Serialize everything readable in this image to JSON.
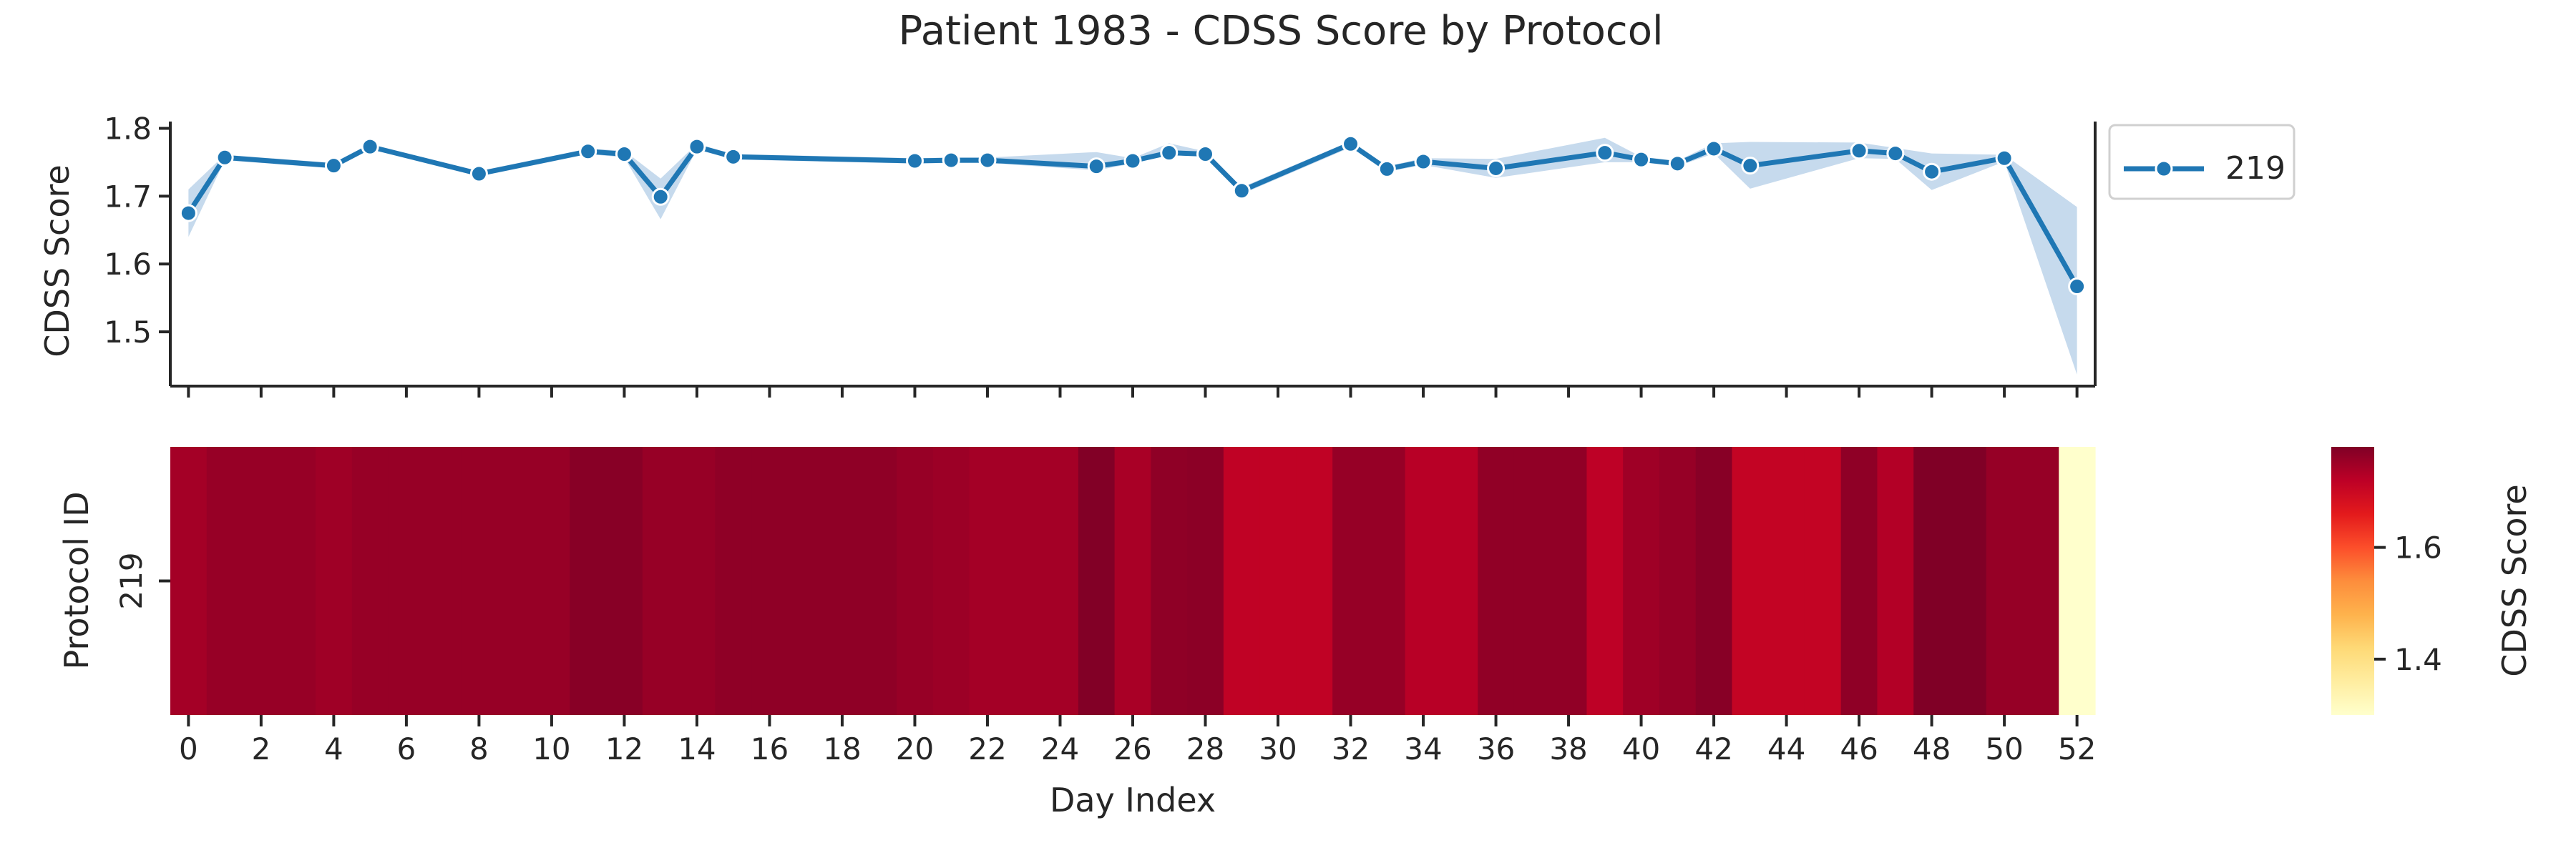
{
  "figure": {
    "title": "Patient 1983 - CDSS Score by Protocol"
  },
  "colors": {
    "line": "#1f77b4",
    "band": "#aecbe5",
    "axis": "#262626"
  },
  "chart_data": [
    {
      "type": "line",
      "ylabel": "CDSS Score",
      "xlabel": "",
      "xlim": [
        -0.5,
        52.5
      ],
      "ylim": [
        1.42,
        1.81
      ],
      "yticks": [
        1.5,
        1.6,
        1.7,
        1.8
      ],
      "legend_position": "upper-right-outside",
      "series": [
        {
          "name": "219",
          "x": [
            0,
            1,
            4,
            5,
            8,
            11,
            12,
            13,
            14,
            15,
            20,
            21,
            22,
            25,
            26,
            27,
            28,
            29,
            32,
            33,
            34,
            36,
            39,
            40,
            41,
            42,
            43,
            46,
            47,
            48,
            50,
            52
          ],
          "y": [
            1.675,
            1.757,
            1.745,
            1.773,
            1.733,
            1.766,
            1.762,
            1.699,
            1.773,
            1.758,
            1.752,
            1.753,
            1.753,
            1.744,
            1.752,
            1.764,
            1.762,
            1.708,
            1.777,
            1.74,
            1.751,
            1.741,
            1.764,
            1.754,
            1.748,
            1.77,
            1.745,
            1.767,
            1.763,
            1.736,
            1.756,
            1.567
          ],
          "lower": [
            1.64,
            1.753,
            1.741,
            1.77,
            1.729,
            1.762,
            1.757,
            1.666,
            1.769,
            1.754,
            1.748,
            1.749,
            1.749,
            1.738,
            1.748,
            1.761,
            1.758,
            1.703,
            1.772,
            1.736,
            1.746,
            1.727,
            1.75,
            1.75,
            1.744,
            1.763,
            1.711,
            1.756,
            1.755,
            1.709,
            1.751,
            1.437
          ],
          "upper": [
            1.71,
            1.761,
            1.749,
            1.776,
            1.737,
            1.77,
            1.767,
            1.726,
            1.777,
            1.762,
            1.756,
            1.757,
            1.757,
            1.765,
            1.756,
            1.778,
            1.766,
            1.713,
            1.781,
            1.744,
            1.756,
            1.755,
            1.786,
            1.758,
            1.752,
            1.778,
            1.78,
            1.779,
            1.771,
            1.763,
            1.761,
            1.684
          ]
        }
      ]
    },
    {
      "type": "heatmap",
      "xlabel": "Day Index",
      "ylabel": "Protocol ID",
      "rows": [
        "219"
      ],
      "xticks": [
        0,
        2,
        4,
        6,
        8,
        10,
        12,
        14,
        16,
        18,
        20,
        22,
        24,
        26,
        28,
        30,
        32,
        34,
        36,
        38,
        40,
        42,
        44,
        46,
        48,
        50,
        52
      ],
      "colormap": "YlOrRd",
      "colorbar": {
        "label": "CDSS Score",
        "range": [
          1.3,
          1.78
        ],
        "ticks": [
          1.4,
          1.6
        ]
      },
      "values": [
        1.745,
        1.757,
        1.757,
        1.757,
        1.75,
        1.757,
        1.757,
        1.757,
        1.757,
        1.757,
        1.757,
        1.772,
        1.772,
        1.757,
        1.757,
        1.765,
        1.765,
        1.765,
        1.765,
        1.765,
        1.757,
        1.752,
        1.745,
        1.745,
        1.745,
        1.778,
        1.74,
        1.765,
        1.768,
        1.715,
        1.715,
        1.715,
        1.758,
        1.758,
        1.725,
        1.725,
        1.763,
        1.763,
        1.763,
        1.718,
        1.75,
        1.758,
        1.772,
        1.71,
        1.71,
        1.71,
        1.765,
        1.73,
        1.78,
        1.78,
        1.758,
        1.758,
        1.3
      ]
    }
  ]
}
